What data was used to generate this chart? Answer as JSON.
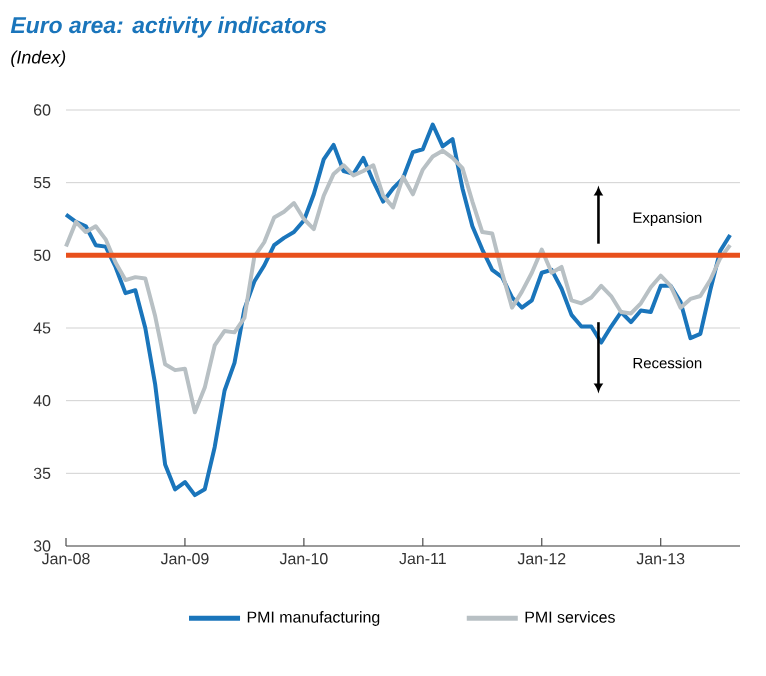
{
  "chart_data": {
    "type": "line",
    "title": "Euro area: activity indicators",
    "subtitle": "(Index)",
    "x": [
      "2008-01",
      "2008-02",
      "2008-03",
      "2008-04",
      "2008-05",
      "2008-06",
      "2008-07",
      "2008-08",
      "2008-09",
      "2008-10",
      "2008-11",
      "2008-12",
      "2009-01",
      "2009-02",
      "2009-03",
      "2009-04",
      "2009-05",
      "2009-06",
      "2009-07",
      "2009-08",
      "2009-09",
      "2009-10",
      "2009-11",
      "2009-12",
      "2010-01",
      "2010-02",
      "2010-03",
      "2010-04",
      "2010-05",
      "2010-06",
      "2010-07",
      "2010-08",
      "2010-09",
      "2010-10",
      "2010-11",
      "2010-12",
      "2011-01",
      "2011-02",
      "2011-03",
      "2011-04",
      "2011-05",
      "2011-06",
      "2011-07",
      "2011-08",
      "2011-09",
      "2011-10",
      "2011-11",
      "2011-12",
      "2012-01",
      "2012-02",
      "2012-03",
      "2012-04",
      "2012-05",
      "2012-06",
      "2012-07",
      "2012-08",
      "2012-09",
      "2012-10",
      "2012-11",
      "2012-12",
      "2013-01",
      "2013-02",
      "2013-03",
      "2013-04",
      "2013-05",
      "2013-06",
      "2013-07",
      "2013-08"
    ],
    "series": [
      {
        "name": "PMI manufacturing",
        "color": "#1a75bb",
        "values": [
          52.8,
          52.3,
          52.0,
          50.7,
          50.6,
          49.2,
          47.4,
          47.6,
          45.0,
          41.1,
          35.6,
          33.9,
          34.4,
          33.5,
          33.9,
          36.8,
          40.7,
          42.6,
          46.3,
          48.2,
          49.3,
          50.7,
          51.2,
          51.6,
          52.4,
          54.2,
          56.6,
          57.6,
          55.8,
          55.6,
          56.7,
          55.1,
          53.7,
          54.6,
          55.3,
          57.1,
          57.3,
          59.0,
          57.5,
          58.0,
          54.6,
          52.0,
          50.4,
          49.0,
          48.5,
          47.1,
          46.4,
          46.9,
          48.8,
          49.0,
          47.7,
          45.9,
          45.1,
          45.1,
          44.0,
          45.1,
          46.1,
          45.4,
          46.2,
          46.1,
          47.9,
          47.9,
          46.8,
          44.3,
          44.6,
          47.6,
          50.3,
          51.4
        ]
      },
      {
        "name": "PMI services",
        "color": "#b8c0c4",
        "values": [
          50.6,
          52.3,
          51.6,
          52.0,
          51.1,
          49.5,
          48.3,
          48.5,
          48.4,
          45.8,
          42.5,
          42.1,
          42.2,
          39.2,
          40.9,
          43.8,
          44.8,
          44.7,
          45.7,
          49.9,
          50.9,
          52.6,
          53.0,
          53.6,
          52.5,
          51.8,
          54.1,
          55.6,
          56.2,
          55.5,
          55.8,
          56.2,
          54.1,
          53.3,
          55.4,
          54.2,
          55.9,
          56.8,
          57.2,
          56.7,
          56.0,
          53.7,
          51.6,
          51.5,
          48.8,
          46.4,
          47.5,
          48.8,
          50.4,
          48.8,
          49.2,
          46.9,
          46.7,
          47.1,
          47.9,
          47.2,
          46.1,
          46.0,
          46.7,
          47.8,
          48.6,
          47.9,
          46.4,
          47.0,
          47.2,
          48.3,
          49.8,
          50.7
        ]
      }
    ],
    "xlim": [
      "2008-01",
      "2013-09"
    ],
    "xticks": [
      {
        "value": "2008-01",
        "label": "Jan-08"
      },
      {
        "value": "2009-01",
        "label": "Jan-09"
      },
      {
        "value": "2010-01",
        "label": "Jan-10"
      },
      {
        "value": "2011-01",
        "label": "Jan-11"
      },
      {
        "value": "2012-01",
        "label": "Jan-12"
      },
      {
        "value": "2013-01",
        "label": "Jan-13"
      }
    ],
    "ylim": [
      30,
      60
    ],
    "yticks": [
      30,
      35,
      40,
      45,
      50,
      55,
      60
    ],
    "grid": "y",
    "legend": "bottom",
    "marker": "none",
    "line_style": "solid",
    "ref_lines": [
      {
        "axis": "y",
        "value": 50,
        "color": "#e8501c"
      }
    ],
    "annotations": [
      "Expansion",
      "Recession"
    ]
  }
}
